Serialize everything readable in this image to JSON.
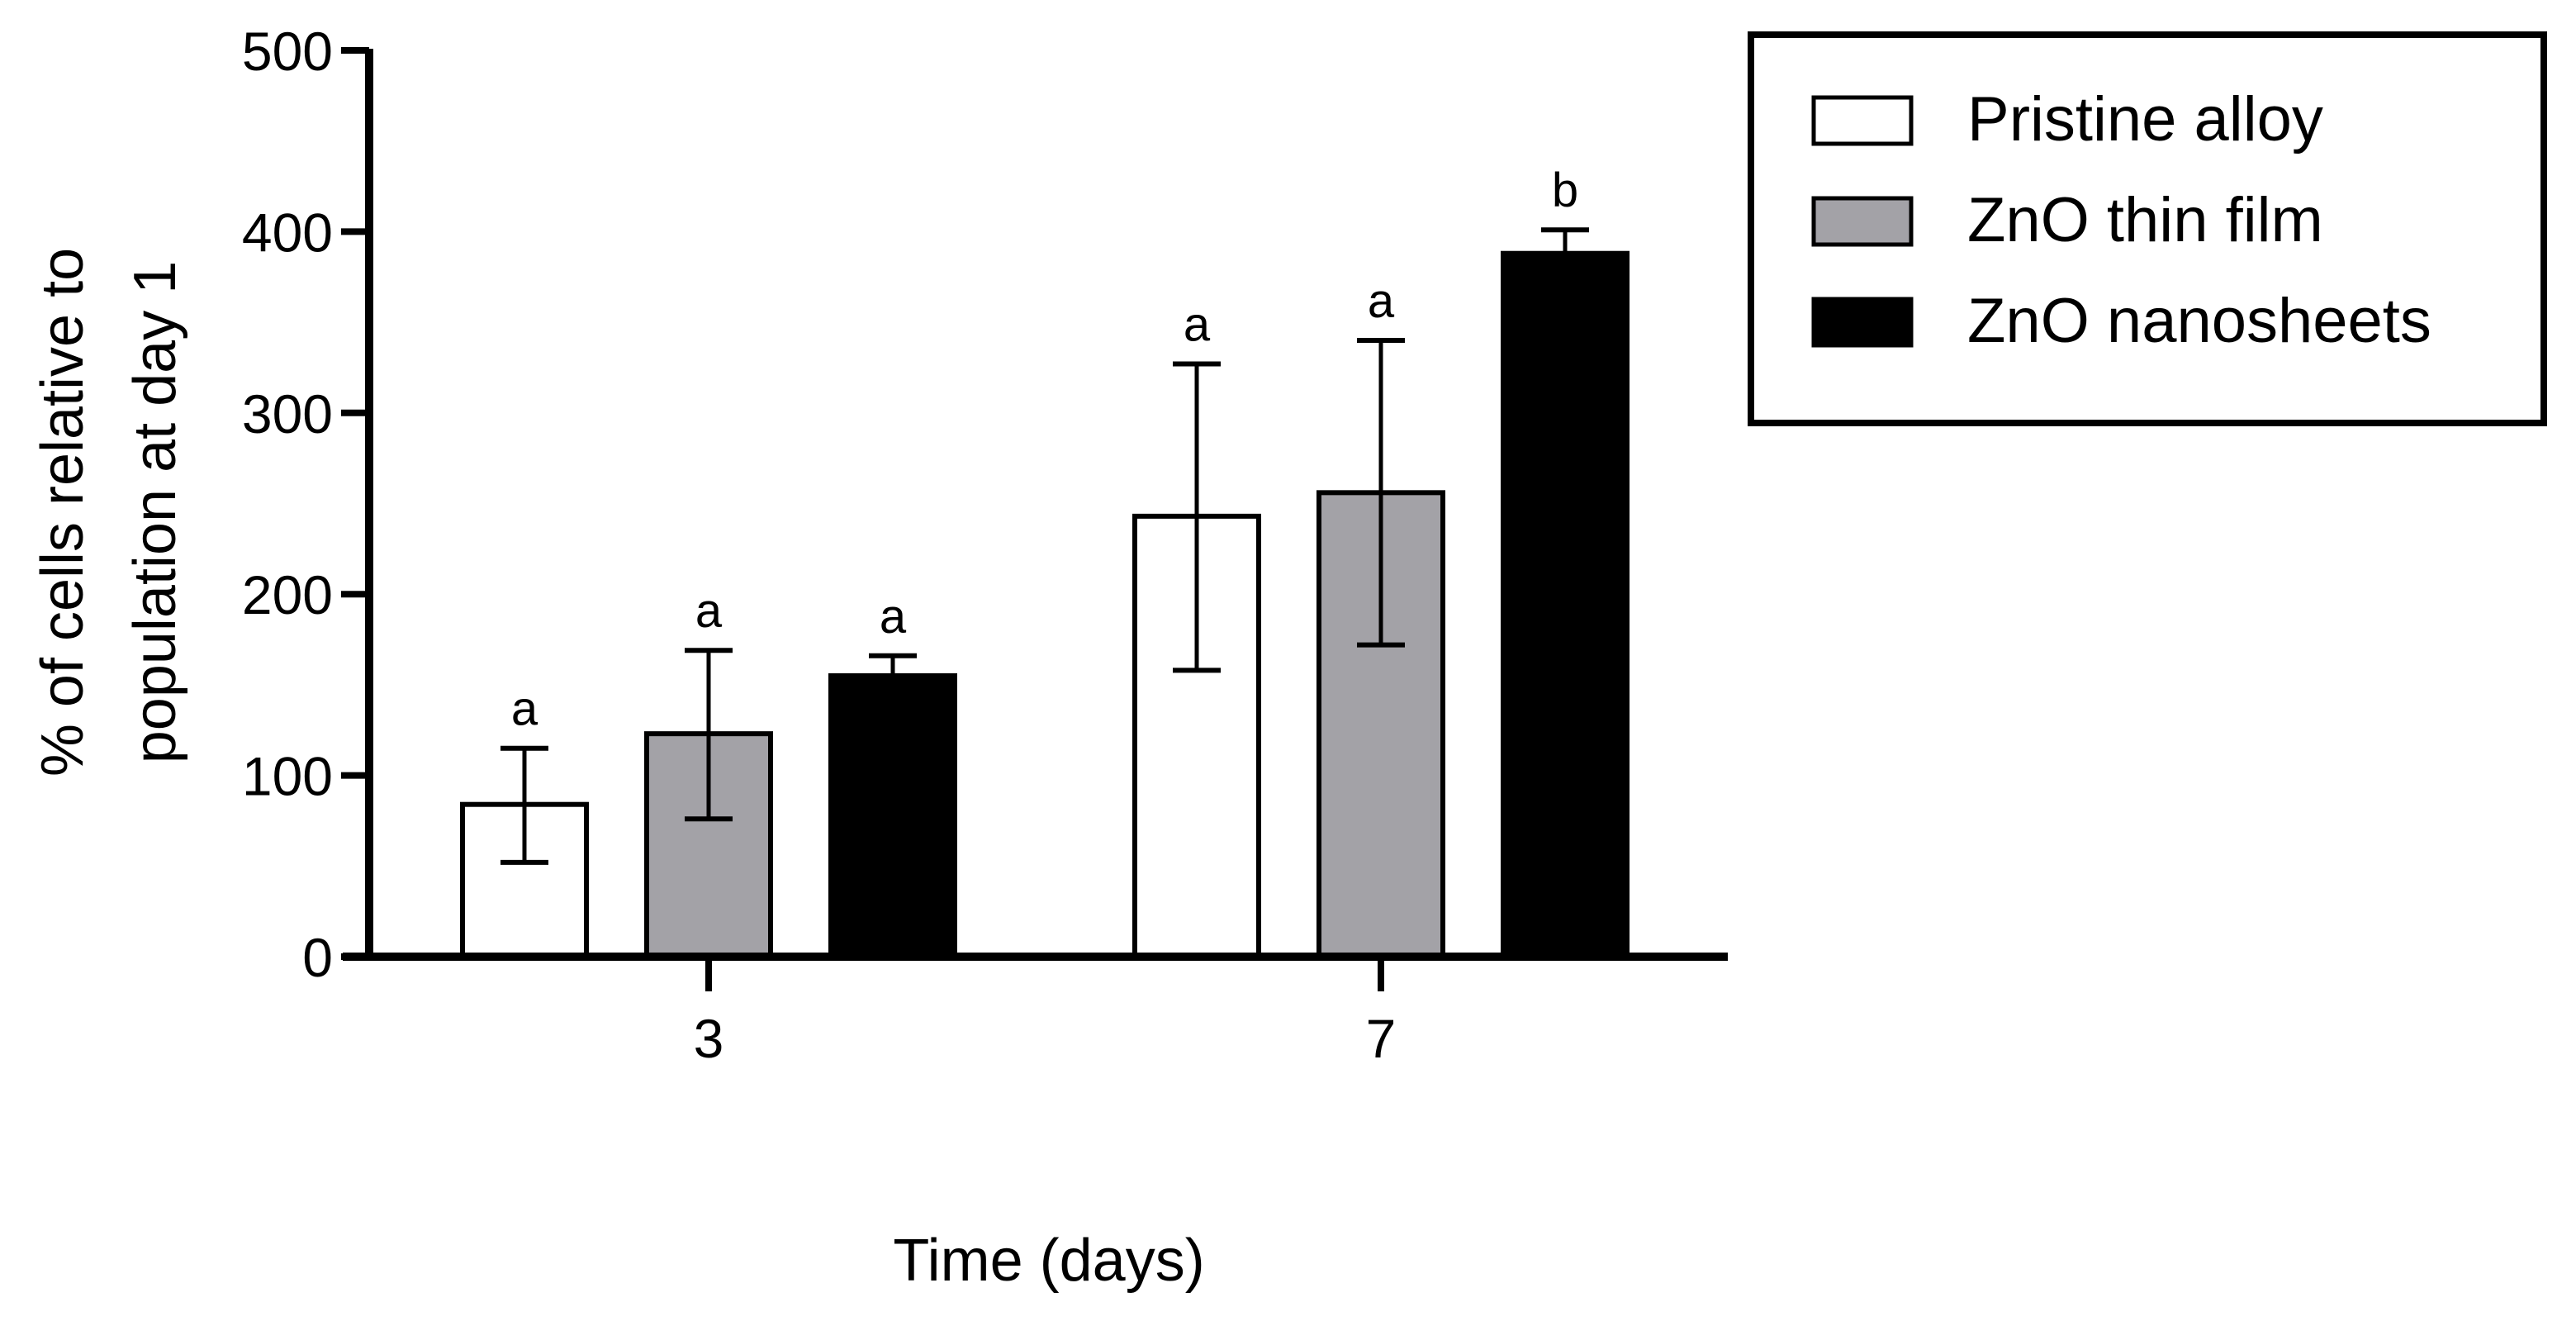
{
  "chart_data": {
    "type": "bar",
    "title": "",
    "xlabel": "Time (days)",
    "ylabel_lines": [
      "% of cells relative to",
      "population at day 1"
    ],
    "ylabel": "% of cells relative to population at day 1",
    "categories": [
      "3",
      "7"
    ],
    "ylim": [
      0,
      500
    ],
    "yticks": [
      0,
      100,
      200,
      300,
      400,
      500
    ],
    "grid": false,
    "legend_position": "top-right, outside plot",
    "error_bars": "upper and lower (mean ± SD)",
    "series": [
      {
        "name": "Pristine alloy",
        "fill": "#ffffff",
        "values": [
          84,
          243
        ],
        "err_low": [
          52,
          158
        ],
        "err_high": [
          115,
          327
        ],
        "significance": [
          "a",
          "a"
        ]
      },
      {
        "name": "ZnO thin film",
        "fill": "#a3a2a7",
        "values": [
          123,
          256
        ],
        "err_low": [
          76,
          172
        ],
        "err_high": [
          169,
          340
        ],
        "significance": [
          "a",
          "a"
        ]
      },
      {
        "name": "ZnO nanosheets",
        "fill": "#000000",
        "values": [
          155,
          388
        ],
        "err_low": [
          144,
          375
        ],
        "err_high": [
          166,
          401
        ],
        "significance": [
          "a",
          "b"
        ]
      }
    ]
  }
}
